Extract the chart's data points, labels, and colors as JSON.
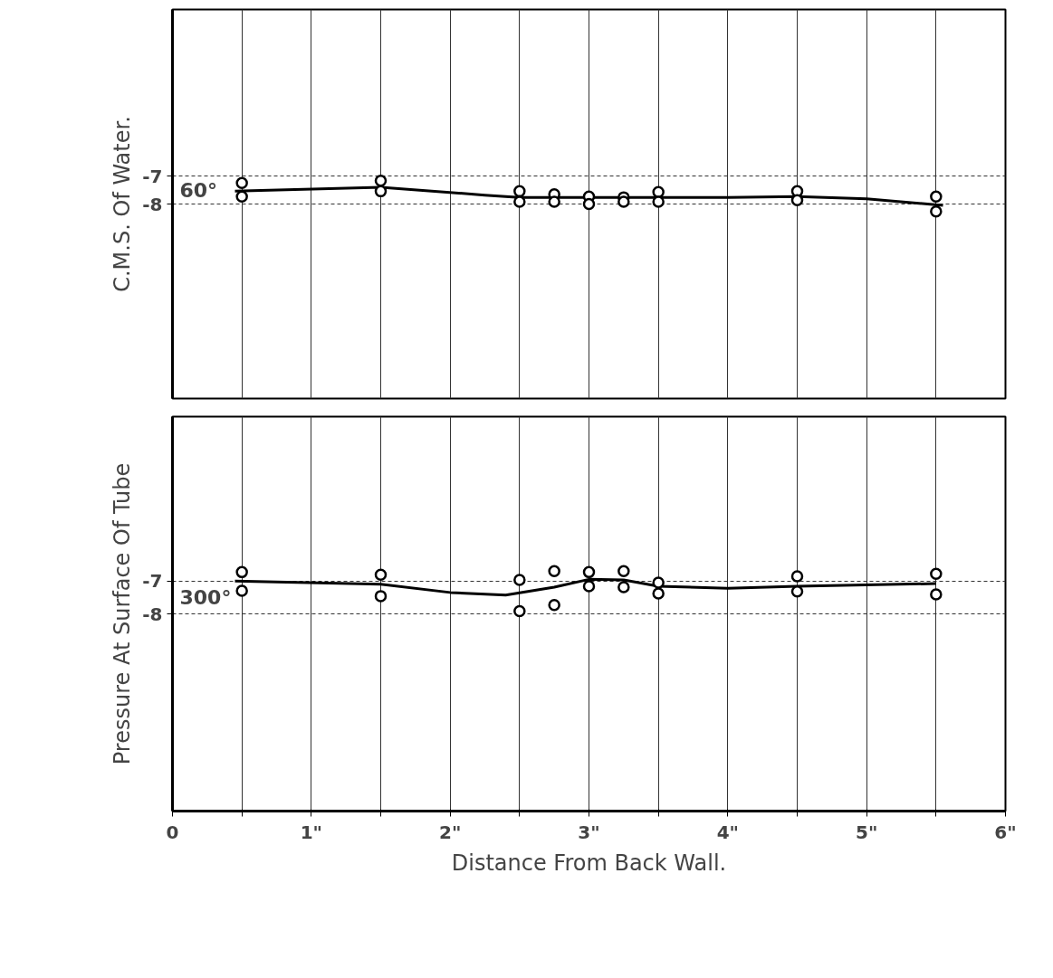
{
  "chart_data": [
    {
      "type": "scatter",
      "ylabel": "C.M.S. Of Water.",
      "annotations": [
        "60°"
      ],
      "xlim": [
        0,
        6
      ],
      "ylim": [
        -15,
        -1
      ],
      "xticks": [
        {
          "value": 0,
          "label": null
        },
        {
          "value": 0.5,
          "label": null
        },
        {
          "value": 1,
          "label": null
        },
        {
          "value": 1.5,
          "label": null
        },
        {
          "value": 2,
          "label": null
        },
        {
          "value": 2.5,
          "label": null
        },
        {
          "value": 3,
          "label": null
        },
        {
          "value": 3.5,
          "label": null
        },
        {
          "value": 4,
          "label": null
        },
        {
          "value": 4.5,
          "label": null
        },
        {
          "value": 5,
          "label": null
        },
        {
          "value": 5.5,
          "label": null
        },
        {
          "value": 6,
          "label": null
        }
      ],
      "yticks": [
        -7,
        -8
      ],
      "tick_labels": "y",
      "grid": true,
      "series": [
        {
          "marker": "circle",
          "color": "#000000",
          "x": [
            0.5,
            0.5,
            1.5,
            1.5,
            2.5,
            2.5,
            2.75,
            2.75,
            3,
            3,
            3.25,
            3.25,
            3.5,
            3.5,
            4.5,
            4.5,
            5.5,
            5.5
          ],
          "values": [
            -7.24,
            -7.73,
            -7.16,
            -7.54,
            -7.54,
            -7.92,
            -7.65,
            -7.92,
            -7.73,
            -8.0,
            -7.76,
            -7.92,
            -7.57,
            -7.92,
            -7.54,
            -7.86,
            -7.73,
            -8.27
          ]
        },
        {
          "type": "line",
          "color": "#000000",
          "x": [
            0.45,
            1.5,
            2.25,
            2.5,
            3,
            4,
            4.5,
            5,
            5.55
          ],
          "values": [
            -7.54,
            -7.4,
            -7.68,
            -7.76,
            -7.76,
            -7.76,
            -7.73,
            -7.81,
            -8.05
          ]
        }
      ]
    },
    {
      "type": "scatter",
      "xlabel": "Distance From Back Wall.",
      "ylabel": "Pressure At Surface Of Tube",
      "annotations": [
        "300°"
      ],
      "xlim": [
        0,
        6
      ],
      "ylim": [
        -14,
        -2
      ],
      "xticks": [
        0,
        {
          "value": 0.5,
          "label": null
        },
        {
          "value": 1,
          "label": "1\""
        },
        {
          "value": 1.5,
          "label": null
        },
        {
          "value": 2,
          "label": "2\""
        },
        {
          "value": 2.5,
          "label": null
        },
        {
          "value": 3,
          "label": "3\""
        },
        {
          "value": 3.5,
          "label": null
        },
        {
          "value": 4,
          "label": "4\""
        },
        {
          "value": 4.5,
          "label": null
        },
        {
          "value": 5,
          "label": "5\""
        },
        {
          "value": 5.5,
          "label": null
        },
        {
          "value": 6,
          "label": "6\""
        }
      ],
      "yticks": [
        -7,
        -8
      ],
      "grid": true,
      "series": [
        {
          "marker": "circle",
          "color": "#000000",
          "x": [
            0.5,
            0.5,
            1.5,
            1.5,
            2.5,
            2.5,
            2.75,
            2.75,
            3,
            3,
            3.25,
            3.25,
            3.5,
            3.5,
            4.5,
            4.5,
            5.5,
            5.5
          ],
          "values": [
            -6.73,
            -7.3,
            -6.81,
            -7.46,
            -6.97,
            -7.92,
            -6.7,
            -7.73,
            -6.73,
            -7.16,
            -6.7,
            -7.19,
            -7.05,
            -7.38,
            -6.86,
            -7.32,
            -6.78,
            -7.41
          ]
        },
        {
          "type": "line",
          "color": "#000000",
          "x": [
            0.45,
            1.5,
            2,
            2.4,
            2.75,
            3,
            3.25,
            3.5,
            4,
            4.5,
            5.5
          ],
          "values": [
            -7.0,
            -7.1,
            -7.35,
            -7.43,
            -7.19,
            -6.95,
            -6.97,
            -7.16,
            -7.22,
            -7.16,
            -7.08
          ]
        }
      ]
    }
  ]
}
